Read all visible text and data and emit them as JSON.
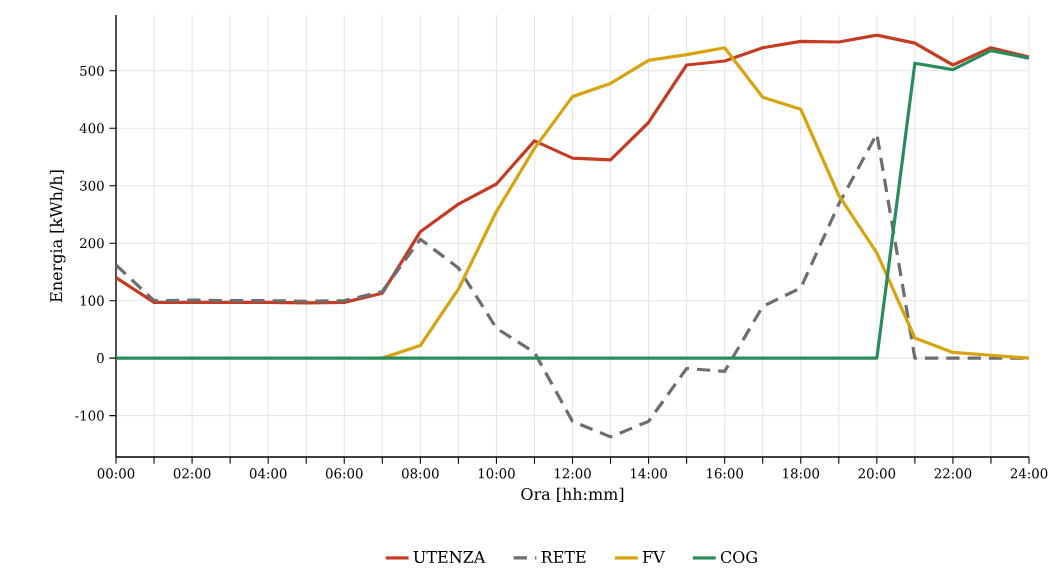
{
  "chart_data": {
    "type": "line",
    "xlabel": "Ora [hh:mm]",
    "ylabel": "Energia [kWh/h]",
    "x": [
      0,
      1,
      2,
      3,
      4,
      5,
      6,
      7,
      8,
      9,
      10,
      11,
      12,
      13,
      14,
      15,
      16,
      17,
      18,
      19,
      20,
      21,
      22,
      23,
      24
    ],
    "xlim": [
      0,
      24
    ],
    "ylim": [
      -172,
      597
    ],
    "xticks": [
      {
        "value": 0,
        "label": "00:00"
      },
      {
        "value": 1,
        "label": null
      },
      {
        "value": 2,
        "label": "02:00"
      },
      {
        "value": 3,
        "label": null
      },
      {
        "value": 4,
        "label": "04:00"
      },
      {
        "value": 5,
        "label": null
      },
      {
        "value": 6,
        "label": "06:00"
      },
      {
        "value": 7,
        "label": null
      },
      {
        "value": 8,
        "label": "08:00"
      },
      {
        "value": 9,
        "label": null
      },
      {
        "value": 10,
        "label": "10:00"
      },
      {
        "value": 11,
        "label": null
      },
      {
        "value": 12,
        "label": "12:00"
      },
      {
        "value": 13,
        "label": null
      },
      {
        "value": 14,
        "label": "14:00"
      },
      {
        "value": 15,
        "label": null
      },
      {
        "value": 16,
        "label": "16:00"
      },
      {
        "value": 17,
        "label": null
      },
      {
        "value": 18,
        "label": "18:00"
      },
      {
        "value": 19,
        "label": null
      },
      {
        "value": 20,
        "label": "20:00"
      },
      {
        "value": 21,
        "label": null
      },
      {
        "value": 22,
        "label": "22:00"
      },
      {
        "value": 23,
        "label": null
      },
      {
        "value": 24,
        "label": "24:00"
      }
    ],
    "yticks": [
      -100,
      0,
      100,
      200,
      300,
      400,
      500
    ],
    "grid": true,
    "legend": "bottom",
    "line_style": "solid",
    "series": [
      {
        "name": "UTENZA",
        "color": "#c63c22",
        "values": [
          140,
          97,
          97,
          97,
          97,
          96,
          97,
          113,
          220,
          268,
          303,
          378,
          348,
          345,
          410,
          510,
          517,
          540,
          551,
          550,
          562,
          548,
          510,
          540,
          524
        ]
      },
      {
        "name": "RETE",
        "color": "#6e6e6e",
        "line_style": "dashed",
        "values": [
          162,
          100,
          101,
          100,
          100,
          99,
          100,
          116,
          207,
          157,
          52,
          10,
          -110,
          -137,
          -110,
          -18,
          -23,
          90,
          122,
          268,
          390,
          0,
          0,
          0,
          0
        ]
      },
      {
        "name": "FV",
        "color": "#d9a20f",
        "values": [
          null,
          null,
          null,
          null,
          null,
          null,
          null,
          0,
          22,
          120,
          255,
          365,
          455,
          478,
          518,
          528,
          540,
          454,
          433,
          283,
          183,
          35,
          10,
          5,
          0
        ]
      },
      {
        "name": "COG",
        "color": "#2a8c5a",
        "values": [
          0,
          0,
          0,
          0,
          0,
          0,
          0,
          0,
          0,
          0,
          0,
          0,
          0,
          0,
          0,
          0,
          0,
          0,
          0,
          0,
          0,
          513,
          502,
          535,
          522
        ]
      }
    ]
  }
}
